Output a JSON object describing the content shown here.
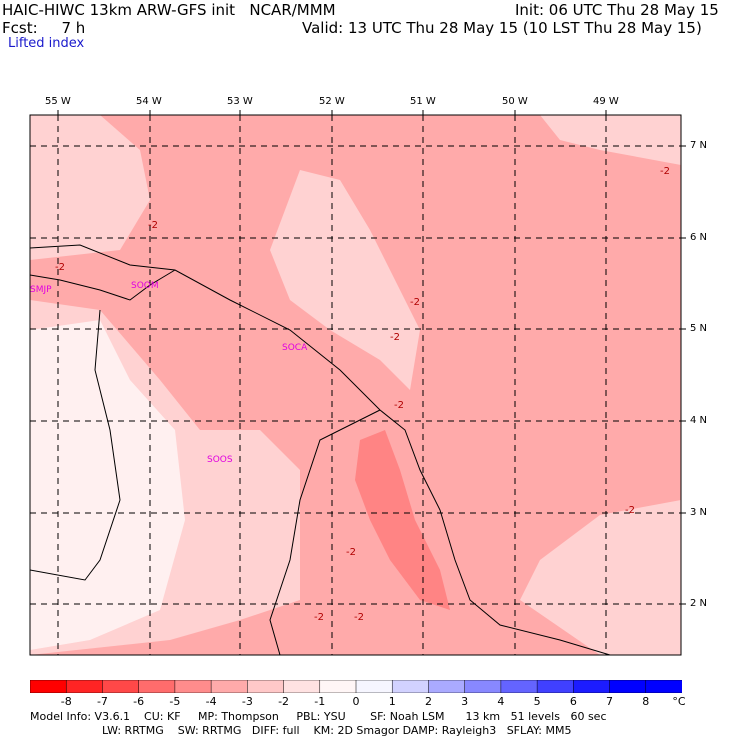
{
  "header": {
    "model_title": "HAIC-HIWC 13km ARW-GFS init",
    "org": "NCAR/MMM",
    "init": "Init: 06 UTC Thu 28 May 15",
    "fcst_label": "Fcst:",
    "fcst_value": "7 h",
    "valid": "Valid: 13 UTC Thu 28 May 15 (10 LST Thu 28 May 15)",
    "field": "Lifted index"
  },
  "map": {
    "lon_labels": [
      "55 W",
      "54 W",
      "53 W",
      "52 W",
      "51 W",
      "50 W",
      "49 W"
    ],
    "lat_labels": [
      "7 N",
      "6 N",
      "5 N",
      "4 N",
      "3 N",
      "2 N"
    ],
    "stations": [
      "SMJP",
      "SOCA",
      "SOOM",
      "SOOS"
    ],
    "contour_labels": [
      "-2",
      "-2",
      "-2",
      "-2",
      "-2",
      "-2",
      "-2",
      "-2",
      "-2",
      "-2"
    ],
    "fill_colors": {
      "very_light": "#fff0f0",
      "light": "#ffd2d2",
      "medium": "#ffaaaa",
      "dark": "#ff8484"
    }
  },
  "colorbar": {
    "ticks": [
      "-8",
      "-7",
      "-6",
      "-5",
      "-4",
      "-3",
      "-2",
      "-1",
      "0",
      "1",
      "2",
      "3",
      "4",
      "5",
      "6",
      "7",
      "8"
    ],
    "unit": "°C",
    "colors": [
      "#ff0000",
      "#ff2424",
      "#ff4848",
      "#ff6c6c",
      "#ff8c8c",
      "#ffaaaa",
      "#ffc8c8",
      "#ffe2e2",
      "#fff6f6",
      "#f6f6ff",
      "#d2d2ff",
      "#aaaaff",
      "#8888ff",
      "#6464ff",
      "#4040ff",
      "#1c1cff",
      "#0000ff"
    ]
  },
  "footer": {
    "line1": "Model Info: V3.6.1    CU: KF     MP: Thompson     PBL: YSU       SF: Noah LSM      13 km   51 levels   60 sec",
    "line2": "LW: RRTMG    SW: RRTMG   DIFF: full    KM: 2D Smagor DAMP: Rayleigh3   SFLAY: MM5"
  }
}
